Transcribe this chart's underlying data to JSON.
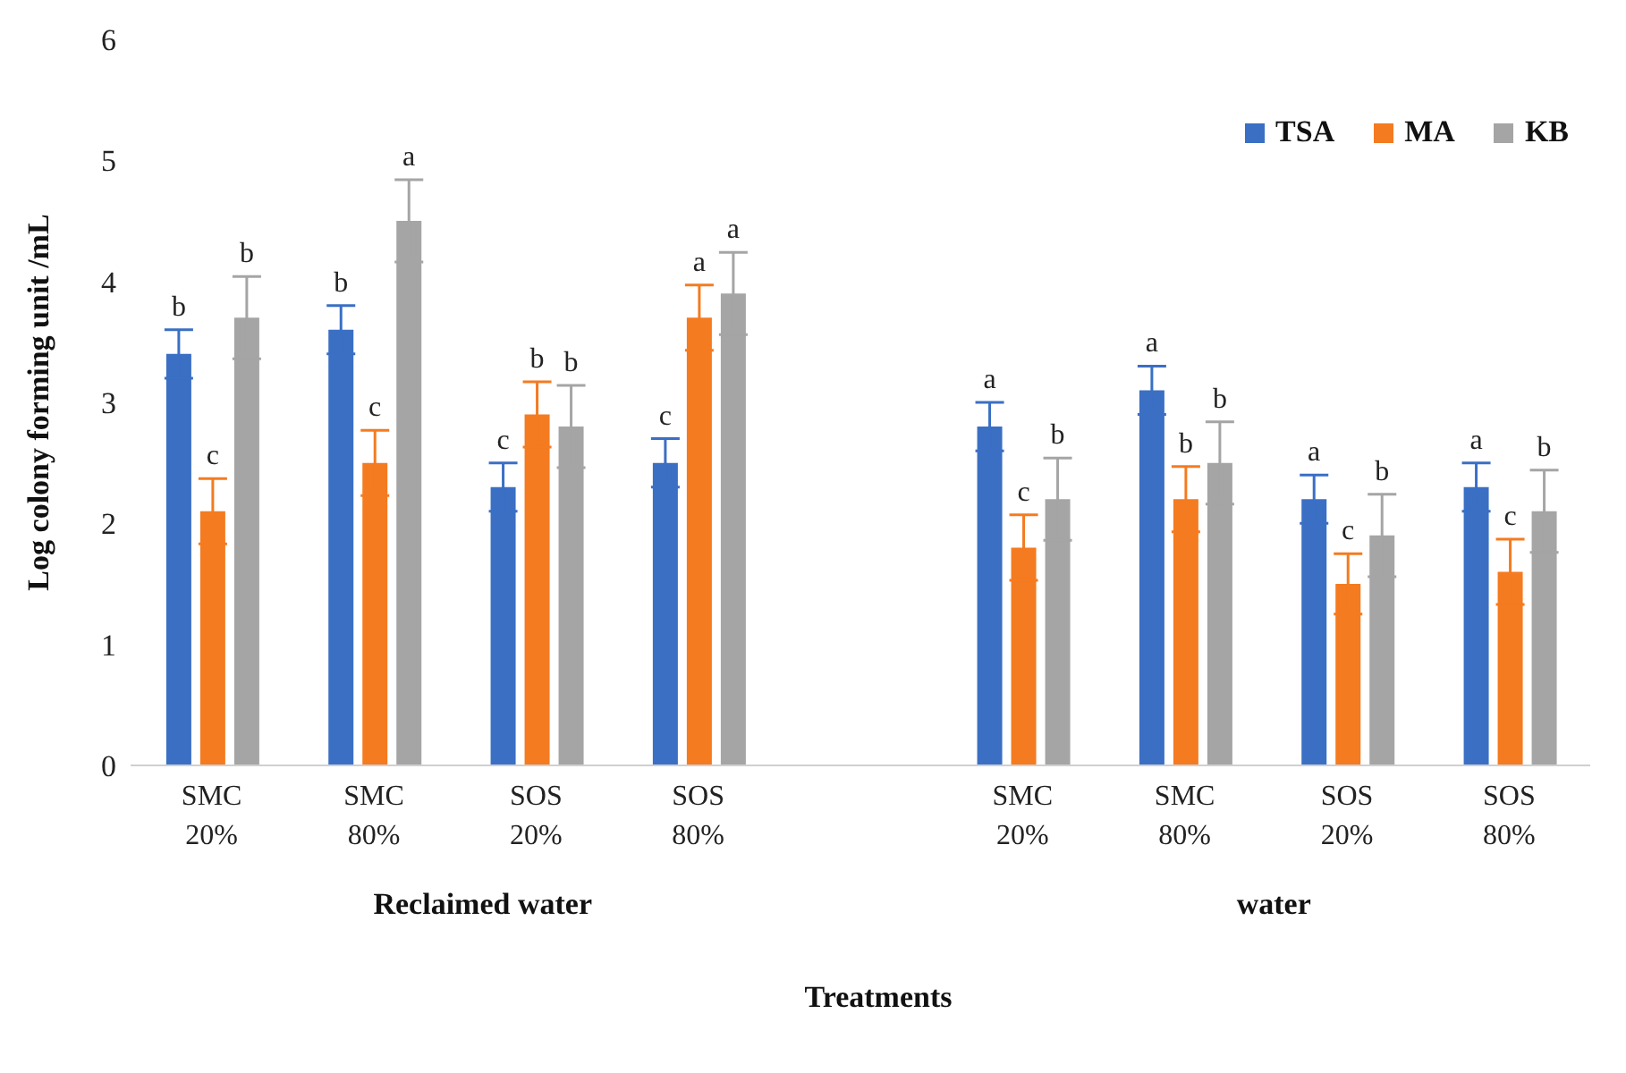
{
  "chart_data": {
    "type": "bar",
    "xlabel": "Treatments",
    "ylabel": "Log colony forming unit /mL",
    "categories": [
      "SMC 20%",
      "SMC 80%",
      "SOS 20%",
      "SOS 80%",
      null,
      "SMC 20%",
      "SMC 80%",
      "SOS 20%",
      "SOS 80%"
    ],
    "series": [
      {
        "name": "TSA",
        "color": "#3a6fc4",
        "values": [
          3.4,
          3.6,
          2.3,
          2.5,
          null,
          2.8,
          3.1,
          2.2,
          2.3
        ],
        "errors": [
          0.2,
          0.2,
          0.2,
          0.2,
          null,
          0.2,
          0.2,
          0.2,
          0.2
        ],
        "value_labels": [
          "b",
          "b",
          "c",
          "c",
          null,
          "a",
          "a",
          "a",
          "a"
        ]
      },
      {
        "name": "MA",
        "color": "#f47b20",
        "values": [
          2.1,
          2.5,
          2.9,
          3.7,
          null,
          1.8,
          2.2,
          1.5,
          1.6
        ],
        "errors": [
          0.27,
          0.27,
          0.27,
          0.27,
          null,
          0.27,
          0.27,
          0.25,
          0.27
        ],
        "value_labels": [
          "c",
          "c",
          "b",
          "a",
          null,
          "c",
          "b",
          "c",
          "c"
        ]
      },
      {
        "name": "KB",
        "color": "#a5a5a5",
        "values": [
          3.7,
          4.5,
          2.8,
          3.9,
          null,
          2.2,
          2.5,
          1.9,
          2.1
        ],
        "errors": [
          0.34,
          0.34,
          0.34,
          0.34,
          null,
          0.34,
          0.34,
          0.34,
          0.34
        ],
        "value_labels": [
          "b",
          "a",
          "b",
          "a",
          null,
          "b",
          "b",
          "b",
          "b"
        ]
      }
    ],
    "annotations": [
      "Reclaimed water",
      "water"
    ],
    "ylim": [
      0,
      6
    ],
    "yticks": [
      0,
      1,
      2,
      3,
      4,
      5,
      6
    ],
    "grid": false,
    "legend": "top right"
  }
}
